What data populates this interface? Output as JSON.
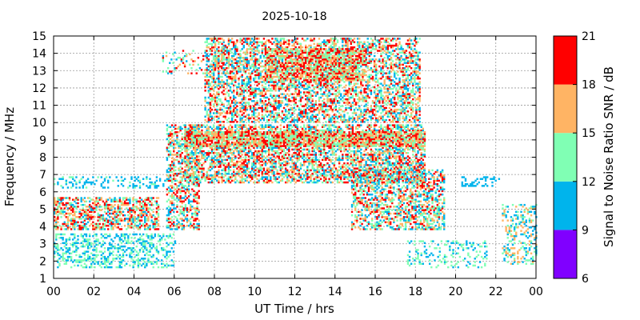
{
  "chart_data": {
    "type": "heatmap",
    "title": "2025-10-18",
    "xlabel": "UT Time / hrs",
    "ylabel": "Frequency / MHz",
    "colorbar_label": "Signal to Noise Ratio SNR / dB",
    "xlim": [
      0,
      24
    ],
    "ylim": [
      1,
      15
    ],
    "x_ticks": [
      "00",
      "02",
      "04",
      "06",
      "08",
      "10",
      "12",
      "14",
      "16",
      "18",
      "20",
      "22",
      "00"
    ],
    "y_ticks": [
      "1",
      "2",
      "3",
      "4",
      "5",
      "6",
      "7",
      "8",
      "9",
      "10",
      "11",
      "12",
      "13",
      "14",
      "15"
    ],
    "grid": true,
    "colorbar": {
      "ticks": [
        "6",
        "9",
        "12",
        "15",
        "18",
        "21"
      ],
      "bins": [
        {
          "min": 6,
          "max": 9,
          "color": "#8000ff"
        },
        {
          "min": 9,
          "max": 12,
          "color": "#00b4ec"
        },
        {
          "min": 12,
          "max": 15,
          "color": "#80ffb4"
        },
        {
          "min": 15,
          "max": 18,
          "color": "#ffb464"
        },
        {
          "min": 18,
          "max": 21,
          "color": "#ff0000"
        }
      ]
    },
    "regions": [
      {
        "name": "low-band-night-2-3MHz",
        "t": [
          0,
          6
        ],
        "f": [
          1.6,
          3.6
        ],
        "density": 0.35,
        "snr": [
          9,
          15
        ]
      },
      {
        "name": "night-4-5.6MHz",
        "t": [
          0,
          5.2
        ],
        "f": [
          3.8,
          5.6
        ],
        "density": 0.55,
        "snr": [
          10,
          21
        ]
      },
      {
        "name": "night-6.5MHz-line",
        "t": [
          0,
          5.5
        ],
        "f": [
          6.2,
          6.8
        ],
        "density": 0.25,
        "snr": [
          9,
          13
        ]
      },
      {
        "name": "morning-rise",
        "t": [
          5.6,
          7.2
        ],
        "f": [
          3.8,
          9.8
        ],
        "density": 0.45,
        "snr": [
          9,
          21
        ]
      },
      {
        "name": "day-7-10MHz",
        "t": [
          6.5,
          18.5
        ],
        "f": [
          6.5,
          9.8
        ],
        "density": 0.55,
        "snr": [
          9,
          21
        ]
      },
      {
        "name": "day-8.6-9.4MHz-core",
        "t": [
          6.5,
          18.5
        ],
        "f": [
          8.6,
          9.4
        ],
        "density": 0.8,
        "snr": [
          12,
          21
        ]
      },
      {
        "name": "day-10-14.8MHz",
        "t": [
          7.5,
          18.2
        ],
        "f": [
          10,
          14.8
        ],
        "density": 0.5,
        "snr": [
          9,
          21
        ]
      },
      {
        "name": "day-12.4-14.2MHz-core",
        "t": [
          10.5,
          15.5
        ],
        "f": [
          12.4,
          14.2
        ],
        "density": 0.65,
        "snr": [
          12,
          21
        ]
      },
      {
        "name": "afternoon-3.8-7MHz",
        "t": [
          14.8,
          19.4
        ],
        "f": [
          3.8,
          7.2
        ],
        "density": 0.5,
        "snr": [
          9,
          21
        ]
      },
      {
        "name": "evening-fade-1.8-3.2MHz",
        "t": [
          17.5,
          21.5
        ],
        "f": [
          1.6,
          3.2
        ],
        "density": 0.2,
        "snr": [
          9,
          15
        ]
      },
      {
        "name": "evening-6.5MHz-line",
        "t": [
          20.2,
          22.2
        ],
        "f": [
          6.3,
          6.8
        ],
        "density": 0.3,
        "snr": [
          9,
          12
        ]
      },
      {
        "name": "late-evening-2-5MHz",
        "t": [
          22.3,
          24
        ],
        "f": [
          1.8,
          5.2
        ],
        "density": 0.3,
        "snr": [
          9,
          18
        ]
      },
      {
        "name": "morning-13.9MHz-sporadic",
        "t": [
          5.4,
          10
        ],
        "f": [
          12.8,
          14.1
        ],
        "density": 0.18,
        "snr": [
          9,
          21
        ]
      }
    ]
  }
}
